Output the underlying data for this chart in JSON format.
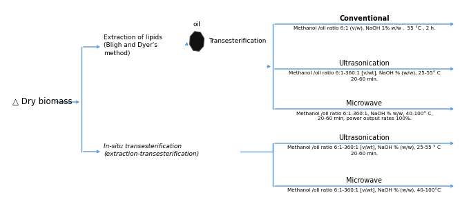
{
  "bg_color": "#ffffff",
  "line_color": "#5B9BD5",
  "text_color": "#000000",
  "triangle_symbol": "△",
  "dry_biomass_label": " Dry biomass",
  "extraction_label": "Extraction of lipids\n(Bligh and Dyer's\nmethod)",
  "insitu_label": "In-situ transesterification\n(extraction-transesterification)",
  "oil_label": "oil",
  "transest_label": "Transesterification",
  "method_labels": {
    "conventional": "Conventional",
    "conventional_detail": "Methanol /oil ratio 6:1 (v/w), NaOH 1% w/w ,  55 °C , 2 h.",
    "ultra1": "Ultrasonication",
    "ultra1_detail": "Methanol /oil ratio 6:1-360:1 [v/wt], NaOH % (w/w), 25-55° C\n20-60 min.",
    "micro1": "Microwave",
    "micro1_detail": "Methanol /oil ratio 6:1-360:1, NaOH % w/w, 40-100° C,\n20-60 min, power output rates 100%.",
    "ultra2": "Ultrasonication",
    "ultra2_detail": "Methanol /oil ratio 6:1-360:1 [v/wt], NaOH % (w/w), 25-55 ° C\n20-60 min.",
    "micro2": "Microwave",
    "micro2_detail": "Methanol /oil ratio 6:1-360:1 [v/wt], NaOH % (w/w), 40-100°C"
  }
}
